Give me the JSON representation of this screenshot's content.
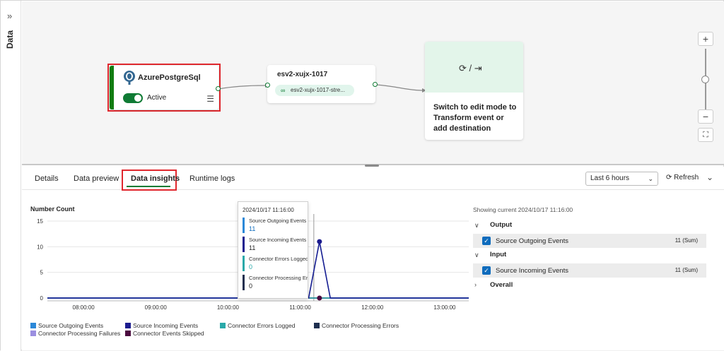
{
  "rail": {
    "label": "Data"
  },
  "canvas": {
    "source": {
      "title": "AzurePostgreSql",
      "status": "Active",
      "toggle_on": true
    },
    "stream": {
      "title": "esv2-xujx-1017",
      "chip": "esv2-xujx-1017-stre..."
    },
    "destination": {
      "text": "Switch to edit mode to Transform event or add destination",
      "separator": "/"
    }
  },
  "tabs": [
    {
      "label": "Details"
    },
    {
      "label": "Data preview"
    },
    {
      "label": "Data insights",
      "active": true
    },
    {
      "label": "Runtime logs"
    }
  ],
  "toolbar": {
    "time_range": "Last 6 hours",
    "refresh_label": "Refresh"
  },
  "chart_data": {
    "type": "line",
    "title": "Number Count",
    "xlabel": "",
    "ylabel": "",
    "ylim": [
      0,
      15
    ],
    "yticks": [
      0,
      5,
      10,
      15
    ],
    "xticks": [
      "08:00:00",
      "09:00:00",
      "10:00:00",
      "11:00:00",
      "12:00:00",
      "13:00:00"
    ],
    "grid": true,
    "legend_position": "bottom",
    "series": [
      {
        "name": "Source Outgoing Events",
        "color": "#2b88d8",
        "points": [
          [
            "07:30",
            0
          ],
          [
            "11:07",
            0
          ],
          [
            "11:16",
            11
          ],
          [
            "11:25",
            0
          ],
          [
            "13:20",
            0
          ]
        ]
      },
      {
        "name": "Source Incoming Events",
        "color": "#1b1b8f",
        "points": [
          [
            "07:30",
            0
          ],
          [
            "11:07",
            0
          ],
          [
            "11:16",
            11
          ],
          [
            "11:25",
            0
          ],
          [
            "13:20",
            0
          ]
        ]
      },
      {
        "name": "Connector Errors Logged",
        "color": "#2aa9a9",
        "points": [
          [
            "07:30",
            0
          ],
          [
            "13:20",
            0
          ]
        ]
      },
      {
        "name": "Connector Processing Errors",
        "color": "#1f2f4f",
        "points": [
          [
            "07:30",
            0
          ],
          [
            "13:20",
            0
          ]
        ]
      },
      {
        "name": "Connector Processing Failures",
        "color": "#9b8fe0",
        "points": [
          [
            "07:30",
            0
          ],
          [
            "13:20",
            0
          ]
        ]
      },
      {
        "name": "Connector Events Skipped",
        "color": "#4b0a3f",
        "points": [
          [
            "07:30",
            0
          ],
          [
            "13:20",
            0
          ]
        ]
      }
    ]
  },
  "tooltip": {
    "time": "2024/10/17 11:16:00",
    "items": [
      {
        "label": "Source Outgoing Events",
        "value": "11",
        "color": "#2b88d8"
      },
      {
        "label": "Source Incoming Events",
        "value": "11",
        "color": "#1b1b8f"
      },
      {
        "label": "Connector Errors Logged",
        "value": "0",
        "color": "#2aa9a9"
      },
      {
        "label": "Connector Processing Errors",
        "value": "0",
        "color": "#1f2f4f"
      }
    ]
  },
  "summary": {
    "showing": "Showing current 2024/10/17 11:16:00",
    "groups": [
      {
        "label": "Output",
        "expanded": true,
        "metric": {
          "label": "Source Outgoing Events",
          "value": "11 (Sum)"
        }
      },
      {
        "label": "Input",
        "expanded": true,
        "metric": {
          "label": "Source Incoming Events",
          "value": "11 (Sum)"
        }
      },
      {
        "label": "Overall",
        "expanded": false
      }
    ]
  }
}
